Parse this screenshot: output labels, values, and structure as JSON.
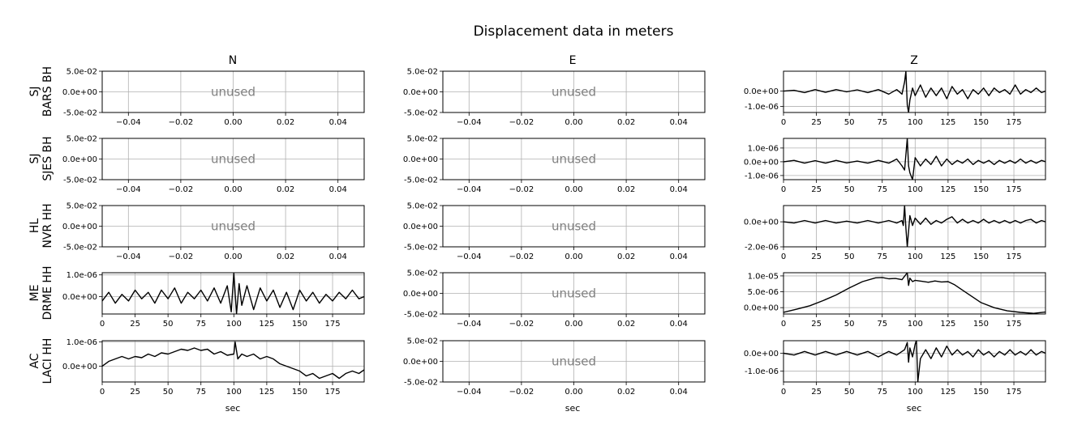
{
  "figure": {
    "title": "Displacement data in meters",
    "column_titles": [
      "N",
      "E",
      "Z"
    ],
    "row_labels": [
      [
        "SJ",
        "BARS BH"
      ],
      [
        "SJ",
        "SJES BH"
      ],
      [
        "HL",
        "NVR HH"
      ],
      [
        "ME",
        "DRME HH"
      ],
      [
        "AC",
        "LACI HH"
      ]
    ],
    "xlabel": "sec",
    "unused_label": "unused",
    "colors": {
      "trace": "#000000",
      "grid": "#b0b0b0",
      "unused_text": "#808080"
    }
  },
  "chart_data": [
    {
      "type": "empty",
      "row": 0,
      "col": 0,
      "xlim": [
        -0.05,
        0.05
      ],
      "ylim": [
        -0.05,
        0.05
      ],
      "xticks": [
        -0.04,
        -0.02,
        0.0,
        0.02,
        0.04
      ],
      "xtick_labels": [
        "−0.04",
        "−0.02",
        "0.00",
        "0.02",
        "0.04"
      ],
      "yticks": [
        -0.05,
        0.0,
        0.05
      ],
      "ytick_labels": [
        "-5.0e-02",
        "0.0e+00",
        "5.0e-02"
      ],
      "annotation": "unused",
      "grid": true
    },
    {
      "type": "empty",
      "row": 0,
      "col": 1,
      "xlim": [
        -0.05,
        0.05
      ],
      "ylim": [
        -0.05,
        0.05
      ],
      "xticks": [
        -0.04,
        -0.02,
        0.0,
        0.02,
        0.04
      ],
      "xtick_labels": [
        "−0.04",
        "−0.02",
        "0.00",
        "0.02",
        "0.04"
      ],
      "yticks": [
        -0.05,
        0.0,
        0.05
      ],
      "ytick_labels": [
        "-5.0e-02",
        "0.0e+00",
        "5.0e-02"
      ],
      "annotation": "unused",
      "grid": true
    },
    {
      "type": "line",
      "row": 0,
      "col": 2,
      "xlim": [
        0,
        199
      ],
      "ylim": [
        -1.4e-06,
        1.3e-06
      ],
      "xticks": [
        0,
        25,
        50,
        75,
        100,
        125,
        150,
        175
      ],
      "xtick_labels": [
        "0",
        "25",
        "50",
        "75",
        "100",
        "125",
        "150",
        "175"
      ],
      "yticks": [
        -1e-06,
        0.0
      ],
      "ytick_labels": [
        "-1.0e-06",
        "0.0e+00"
      ],
      "grid": true,
      "x": [
        0,
        8,
        16,
        24,
        32,
        40,
        48,
        56,
        64,
        72,
        80,
        86,
        90,
        92,
        93,
        94,
        95,
        96,
        98,
        100,
        104,
        108,
        112,
        116,
        120,
        124,
        128,
        132,
        136,
        140,
        144,
        148,
        152,
        156,
        160,
        164,
        168,
        172,
        176,
        180,
        184,
        188,
        192,
        196,
        199
      ],
      "y": [
        0.0,
        5e-08,
        -1e-07,
        1e-07,
        -8e-08,
        1e-07,
        -5e-08,
        8e-08,
        -1e-07,
        1e-07,
        -2e-07,
        1e-07,
        -2e-07,
        6e-07,
        1.3e-06,
        -9e-07,
        -1.4e-06,
        -6e-07,
        2e-07,
        -3e-07,
        4e-07,
        -4e-07,
        2e-07,
        -3e-07,
        2e-07,
        -5e-07,
        3e-07,
        -2e-07,
        1e-07,
        -5e-07,
        1e-07,
        -2e-07,
        2e-07,
        -3e-07,
        2e-07,
        -1e-07,
        1e-07,
        -2e-07,
        4e-07,
        -2e-07,
        1e-07,
        -1e-07,
        2e-07,
        -1e-07,
        0.0
      ]
    },
    {
      "type": "empty",
      "row": 1,
      "col": 0,
      "xlim": [
        -0.05,
        0.05
      ],
      "ylim": [
        -0.05,
        0.05
      ],
      "xticks": [
        -0.04,
        -0.02,
        0.0,
        0.02,
        0.04
      ],
      "xtick_labels": [
        "−0.04",
        "−0.02",
        "0.00",
        "0.02",
        "0.04"
      ],
      "yticks": [
        -0.05,
        0.0,
        0.05
      ],
      "ytick_labels": [
        "-5.0e-02",
        "0.0e+00",
        "5.0e-02"
      ],
      "annotation": "unused",
      "grid": true
    },
    {
      "type": "empty",
      "row": 1,
      "col": 1,
      "xlim": [
        -0.05,
        0.05
      ],
      "ylim": [
        -0.05,
        0.05
      ],
      "xticks": [
        -0.04,
        -0.02,
        0.0,
        0.02,
        0.04
      ],
      "xtick_labels": [
        "−0.04",
        "−0.02",
        "0.00",
        "0.02",
        "0.04"
      ],
      "yticks": [
        -0.05,
        0.0,
        0.05
      ],
      "ytick_labels": [
        "-5.0e-02",
        "0.0e+00",
        "5.0e-02"
      ],
      "annotation": "unused",
      "grid": true
    },
    {
      "type": "line",
      "row": 1,
      "col": 2,
      "xlim": [
        0,
        199
      ],
      "ylim": [
        -1.3e-06,
        1.7e-06
      ],
      "xticks": [
        0,
        25,
        50,
        75,
        100,
        125,
        150,
        175
      ],
      "xtick_labels": [
        "0",
        "25",
        "50",
        "75",
        "100",
        "125",
        "150",
        "175"
      ],
      "yticks": [
        -1e-06,
        0.0,
        1e-06
      ],
      "ytick_labels": [
        "-1.0e-06",
        "0.0e+00",
        "1.0e-06"
      ],
      "grid": true,
      "x": [
        0,
        8,
        16,
        24,
        32,
        40,
        48,
        56,
        64,
        72,
        80,
        86,
        90,
        92,
        94,
        95,
        96,
        98,
        100,
        104,
        108,
        112,
        116,
        120,
        124,
        128,
        132,
        136,
        140,
        144,
        148,
        152,
        156,
        160,
        164,
        168,
        172,
        176,
        180,
        184,
        188,
        192,
        196,
        199
      ],
      "y": [
        0.0,
        1e-07,
        -1e-07,
        8e-08,
        -1e-07,
        1e-07,
        -8e-08,
        5e-08,
        -1e-07,
        1e-07,
        -1e-07,
        2e-07,
        -3e-07,
        -6e-07,
        1.7e-06,
        -3e-07,
        -8e-07,
        -1.3e-06,
        3e-07,
        -3e-07,
        2e-07,
        -2e-07,
        4e-07,
        -3e-07,
        2e-07,
        -2e-07,
        1e-07,
        -1e-07,
        2e-07,
        -2e-07,
        1e-07,
        -1e-07,
        1e-07,
        -2e-07,
        1e-07,
        -1e-07,
        1e-07,
        -1e-07,
        2e-07,
        -1e-07,
        1e-07,
        -1e-07,
        1e-07,
        0.0
      ]
    },
    {
      "type": "empty",
      "row": 2,
      "col": 0,
      "xlim": [
        -0.05,
        0.05
      ],
      "ylim": [
        -0.05,
        0.05
      ],
      "xticks": [
        -0.04,
        -0.02,
        0.0,
        0.02,
        0.04
      ],
      "xtick_labels": [
        "−0.04",
        "−0.02",
        "0.00",
        "0.02",
        "0.04"
      ],
      "yticks": [
        -0.05,
        0.0,
        0.05
      ],
      "ytick_labels": [
        "-5.0e-02",
        "0.0e+00",
        "5.0e-02"
      ],
      "annotation": "unused",
      "grid": true
    },
    {
      "type": "empty",
      "row": 2,
      "col": 1,
      "xlim": [
        -0.05,
        0.05
      ],
      "ylim": [
        -0.05,
        0.05
      ],
      "xticks": [
        -0.04,
        -0.02,
        0.0,
        0.02,
        0.04
      ],
      "xtick_labels": [
        "−0.04",
        "−0.02",
        "0.00",
        "0.02",
        "0.04"
      ],
      "yticks": [
        -0.05,
        0.0,
        0.05
      ],
      "ytick_labels": [
        "-5.0e-02",
        "0.0e+00",
        "5.0e-02"
      ],
      "annotation": "unused",
      "grid": true
    },
    {
      "type": "line",
      "row": 2,
      "col": 2,
      "xlim": [
        0,
        199
      ],
      "ylim": [
        -2e-06,
        1.3e-06
      ],
      "xticks": [
        0,
        25,
        50,
        75,
        100,
        125,
        150,
        175
      ],
      "xtick_labels": [
        "0",
        "25",
        "50",
        "75",
        "100",
        "125",
        "150",
        "175"
      ],
      "yticks": [
        -2e-06,
        0.0
      ],
      "ytick_labels": [
        "-2.0e-06",
        "0.0e+00"
      ],
      "grid": true,
      "x": [
        0,
        8,
        16,
        24,
        32,
        40,
        48,
        56,
        64,
        72,
        80,
        86,
        90,
        91,
        92,
        93,
        94,
        96,
        98,
        100,
        104,
        108,
        112,
        116,
        120,
        124,
        128,
        132,
        136,
        140,
        144,
        148,
        152,
        156,
        160,
        164,
        168,
        172,
        176,
        180,
        184,
        188,
        192,
        196,
        199
      ],
      "y": [
        0.0,
        -1e-07,
        1e-07,
        -1e-07,
        1e-07,
        -1e-07,
        5e-08,
        -1e-07,
        1e-07,
        -1e-07,
        1e-07,
        -1e-07,
        1e-07,
        -3e-07,
        1.3e-06,
        -5e-07,
        -2e-06,
        5e-07,
        -3e-07,
        3e-07,
        -2e-07,
        3e-07,
        -2e-07,
        1e-07,
        -1e-07,
        2e-07,
        4e-07,
        -1e-07,
        2e-07,
        -1e-07,
        1e-07,
        -1e-07,
        2e-07,
        -1e-07,
        1e-07,
        -1e-07,
        1e-07,
        -1e-07,
        1e-07,
        -1e-07,
        1e-07,
        2e-07,
        -1e-07,
        1e-07,
        0.0
      ]
    },
    {
      "type": "line",
      "row": 3,
      "col": 0,
      "xlim": [
        0,
        199
      ],
      "ylim": [
        -8e-07,
        1.1e-06
      ],
      "xticks": [
        0,
        25,
        50,
        75,
        100,
        125,
        150,
        175
      ],
      "xtick_labels": [
        "0",
        "25",
        "50",
        "75",
        "100",
        "125",
        "150",
        "175"
      ],
      "yticks": [
        0.0,
        1e-06
      ],
      "ytick_labels": [
        "0.0e+00",
        "1.0e-06"
      ],
      "grid": true,
      "x": [
        0,
        5,
        10,
        15,
        20,
        25,
        30,
        35,
        40,
        45,
        50,
        55,
        60,
        65,
        70,
        75,
        80,
        85,
        90,
        95,
        98,
        100,
        102,
        104,
        106,
        110,
        115,
        120,
        125,
        130,
        135,
        140,
        145,
        150,
        155,
        160,
        165,
        170,
        175,
        180,
        185,
        190,
        195,
        199
      ],
      "y": [
        -2e-07,
        2e-07,
        -3e-07,
        1e-07,
        -2e-07,
        3e-07,
        -1e-07,
        2e-07,
        -3e-07,
        3e-07,
        -1e-07,
        4e-07,
        -3e-07,
        2e-07,
        -1e-07,
        3e-07,
        -2e-07,
        4e-07,
        -3e-07,
        5e-07,
        -7e-07,
        1.1e-06,
        -8e-07,
        6e-07,
        -4e-07,
        5e-07,
        -6e-07,
        4e-07,
        -2e-07,
        3e-07,
        -5e-07,
        2e-07,
        -6e-07,
        3e-07,
        -2e-07,
        2e-07,
        -3e-07,
        1e-07,
        -2e-07,
        2e-07,
        -1e-07,
        3e-07,
        -1e-07,
        0.0
      ]
    },
    {
      "type": "empty",
      "row": 3,
      "col": 1,
      "xlim": [
        -0.05,
        0.05
      ],
      "ylim": [
        -0.05,
        0.05
      ],
      "xticks": [
        -0.04,
        -0.02,
        0.0,
        0.02,
        0.04
      ],
      "xtick_labels": [
        "−0.04",
        "−0.02",
        "0.00",
        "0.02",
        "0.04"
      ],
      "yticks": [
        -0.05,
        0.0,
        0.05
      ],
      "ytick_labels": [
        "-5.0e-02",
        "0.0e+00",
        "5.0e-02"
      ],
      "annotation": "unused",
      "grid": true
    },
    {
      "type": "line",
      "row": 3,
      "col": 2,
      "xlim": [
        0,
        199
      ],
      "ylim": [
        -2e-06,
        1.1e-05
      ],
      "xticks": [
        0,
        25,
        50,
        75,
        100,
        125,
        150,
        175
      ],
      "xtick_labels": [
        "0",
        "25",
        "50",
        "75",
        "100",
        "125",
        "150",
        "175"
      ],
      "yticks": [
        0.0,
        5e-06,
        1e-05
      ],
      "ytick_labels": [
        "0.0e+00",
        "5.0e-06",
        "1.0e-05"
      ],
      "grid": true,
      "x": [
        0,
        10,
        20,
        30,
        40,
        50,
        60,
        70,
        75,
        80,
        85,
        90,
        94,
        95,
        96,
        98,
        100,
        105,
        110,
        115,
        120,
        125,
        130,
        135,
        140,
        145,
        150,
        160,
        170,
        180,
        190,
        199
      ],
      "y": [
        -1.5e-06,
        -5e-07,
        6e-07,
        2.2e-06,
        4e-06,
        6.2e-06,
        8.2e-06,
        9.4e-06,
        9.5e-06,
        9.1e-06,
        9.2e-06,
        8.8e-06,
        1.1e-05,
        7e-06,
        9.3e-06,
        8.2e-06,
        8.6e-06,
        8.3e-06,
        8e-06,
        8.4e-06,
        8.1e-06,
        8.2e-06,
        7.2e-06,
        5.8e-06,
        4.4e-06,
        3e-06,
        1.6e-06,
        0.0,
        -1e-06,
        -1.5e-06,
        -1.8e-06,
        -1.4e-06
      ]
    },
    {
      "type": "line",
      "row": 4,
      "col": 0,
      "xlim": [
        0,
        199
      ],
      "ylim": [
        -6.5e-07,
        1.05e-06
      ],
      "xticks": [
        0,
        25,
        50,
        75,
        100,
        125,
        150,
        175
      ],
      "xtick_labels": [
        "0",
        "25",
        "50",
        "75",
        "100",
        "125",
        "150",
        "175"
      ],
      "yticks": [
        0.0,
        1e-06
      ],
      "ytick_labels": [
        "0.0e+00",
        "1.0e-06"
      ],
      "grid": true,
      "x": [
        0,
        5,
        10,
        15,
        20,
        25,
        30,
        35,
        40,
        45,
        50,
        55,
        60,
        65,
        70,
        75,
        80,
        85,
        90,
        95,
        100,
        101,
        103,
        106,
        110,
        115,
        120,
        125,
        130,
        135,
        140,
        145,
        150,
        155,
        160,
        165,
        170,
        175,
        180,
        185,
        190,
        195,
        199
      ],
      "y": [
        0.0,
        2e-07,
        3e-07,
        4e-07,
        3e-07,
        4e-07,
        3.5e-07,
        5e-07,
        4e-07,
        5.5e-07,
        5e-07,
        6e-07,
        7e-07,
        6.5e-07,
        7.5e-07,
        6.5e-07,
        7e-07,
        5e-07,
        6e-07,
        4.5e-07,
        5e-07,
        1e-06,
        3e-07,
        5e-07,
        4e-07,
        5e-07,
        3e-07,
        4e-07,
        3e-07,
        1e-07,
        0.0,
        -1e-07,
        -2e-07,
        -4e-07,
        -3e-07,
        -5e-07,
        -4e-07,
        -3e-07,
        -5e-07,
        -3e-07,
        -2e-07,
        -3e-07,
        -1.5e-07
      ]
    },
    {
      "type": "empty",
      "row": 4,
      "col": 1,
      "xlim": [
        -0.05,
        0.05
      ],
      "ylim": [
        -0.05,
        0.05
      ],
      "xticks": [
        -0.04,
        -0.02,
        0.0,
        0.02,
        0.04
      ],
      "xtick_labels": [
        "−0.04",
        "−0.02",
        "0.00",
        "0.02",
        "0.04"
      ],
      "yticks": [
        -0.05,
        0.0,
        0.05
      ],
      "ytick_labels": [
        "-5.0e-02",
        "0.0e+00",
        "5.0e-02"
      ],
      "annotation": "unused",
      "grid": true
    },
    {
      "type": "line",
      "row": 4,
      "col": 2,
      "xlim": [
        0,
        199
      ],
      "ylim": [
        -1.6e-06,
        7e-07
      ],
      "xticks": [
        0,
        25,
        50,
        75,
        100,
        125,
        150,
        175
      ],
      "xtick_labels": [
        "0",
        "25",
        "50",
        "75",
        "100",
        "125",
        "150",
        "175"
      ],
      "yticks": [
        -1e-06,
        0.0
      ],
      "ytick_labels": [
        "-1.0e-06",
        "0.0e+00"
      ],
      "grid": true,
      "x": [
        0,
        8,
        16,
        24,
        32,
        40,
        48,
        56,
        64,
        72,
        80,
        86,
        92,
        94,
        95,
        96,
        98,
        100,
        101,
        102,
        104,
        108,
        112,
        116,
        120,
        124,
        128,
        132,
        136,
        140,
        144,
        148,
        152,
        156,
        160,
        164,
        168,
        172,
        176,
        180,
        184,
        188,
        192,
        196,
        199
      ],
      "y": [
        0.0,
        -1e-07,
        1e-07,
        -1e-07,
        1e-07,
        -1e-07,
        1e-07,
        -1e-07,
        1e-07,
        -2e-07,
        1e-07,
        -1e-07,
        2e-07,
        6e-07,
        -5e-07,
        3e-07,
        -2e-07,
        5e-07,
        7e-07,
        -1.6e-06,
        -3e-07,
        2e-07,
        -3e-07,
        3e-07,
        -2e-07,
        4e-07,
        -1e-07,
        2e-07,
        -1e-07,
        1e-07,
        -2e-07,
        2e-07,
        -1e-07,
        1e-07,
        -2e-07,
        1e-07,
        -1e-07,
        2e-07,
        -1e-07,
        1e-07,
        -1e-07,
        2e-07,
        -1e-07,
        1e-07,
        0.0
      ]
    }
  ]
}
